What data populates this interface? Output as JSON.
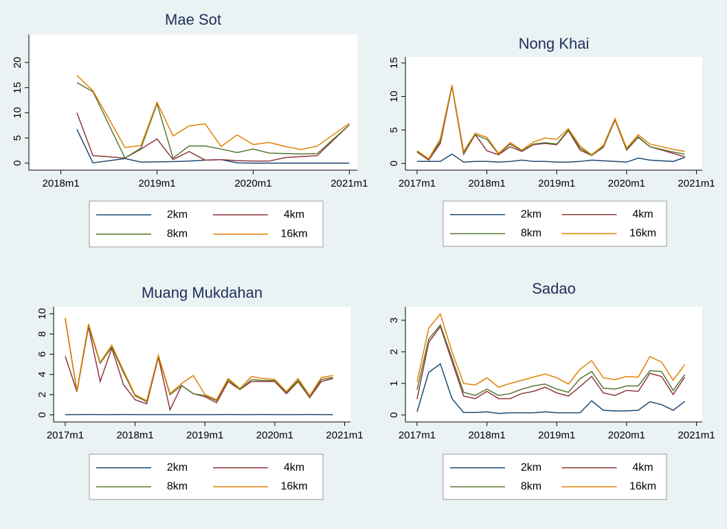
{
  "chart_data": [
    {
      "type": "line",
      "title": "Mae Sot",
      "legend": "bottom",
      "x": [
        "2018m3",
        "2018m5",
        "2018m9",
        "2018m11",
        "2019m1",
        "2019m3",
        "2019m5",
        "2019m7",
        "2019m9",
        "2019m11",
        "2020m1",
        "2020m3",
        "2020m5",
        "2020m7",
        "2020m9",
        "2021m1"
      ],
      "xlim": [
        "2017m9",
        "2021m2"
      ],
      "xticks": [
        "2018m1",
        "2019m1",
        "2020m1",
        "2021m1"
      ],
      "ylim": [
        -1.4,
        25.6
      ],
      "yticks": [
        0,
        5,
        10,
        15,
        20
      ],
      "series": [
        {
          "name": "2km",
          "color": "#1a476f",
          "values": [
            6.7,
            0.05,
            0.9,
            0.2,
            0.25,
            0.3,
            0.4,
            0.6,
            0.7,
            0.05,
            0,
            0,
            0,
            0,
            0,
            0
          ]
        },
        {
          "name": "4km",
          "color": "#90353b",
          "values": [
            10,
            1.5,
            1.0,
            2.8,
            4.8,
            0.7,
            2.3,
            0.6,
            0.7,
            0.5,
            0.4,
            0.4,
            1.1,
            1.3,
            1.5,
            7.6
          ]
        },
        {
          "name": "8km",
          "color": "#55752f",
          "values": [
            16,
            14.2,
            1.0,
            3.0,
            11.8,
            1.0,
            3.4,
            3.4,
            2.8,
            2.1,
            2.8,
            2.0,
            1.9,
            1.8,
            1.9,
            7.6
          ]
        },
        {
          "name": "16km",
          "color": "#e37e00",
          "values": [
            17.4,
            14.4,
            3.1,
            3.5,
            12.1,
            5.4,
            7.4,
            7.8,
            3.3,
            5.6,
            3.7,
            4.1,
            3.3,
            2.7,
            3.4,
            7.9
          ]
        }
      ]
    },
    {
      "type": "line",
      "title": "Nong Khai",
      "legend": "bottom",
      "x": [
        "2017m1",
        "2017m3",
        "2017m5",
        "2017m7",
        "2017m9",
        "2017m11",
        "2018m1",
        "2018m3",
        "2018m5",
        "2018m7",
        "2018m9",
        "2018m11",
        "2019m1",
        "2019m3",
        "2019m5",
        "2019m7",
        "2019m9",
        "2019m11",
        "2020m1",
        "2020m3",
        "2020m5",
        "2020m7",
        "2020m9",
        "2020m11"
      ],
      "xlim": [
        "2016m11",
        "2021m2"
      ],
      "xticks": [
        "2017m1",
        "2018m1",
        "2019m1",
        "2020m1",
        "2021m1"
      ],
      "ylim": [
        -1,
        15.9
      ],
      "yticks": [
        0,
        5,
        10,
        15
      ],
      "series": [
        {
          "name": "2km",
          "color": "#1a476f",
          "values": [
            0.3,
            0.3,
            0.3,
            1.4,
            0.2,
            0.3,
            0.3,
            0.2,
            0.3,
            0.5,
            0.3,
            0.3,
            0.2,
            0.2,
            0.3,
            0.5,
            0.4,
            0.3,
            0.2,
            0.8,
            0.5,
            0.4,
            0.3,
            0.9
          ]
        },
        {
          "name": "4km",
          "color": "#90353b",
          "values": [
            1.7,
            0.5,
            3.0,
            11.5,
            1.4,
            4.3,
            1.9,
            1.3,
            2.5,
            1.8,
            2.8,
            3.0,
            2.8,
            4.9,
            2.0,
            1.2,
            2.4,
            6.5,
            2.0,
            3.9,
            2.5,
            2.0,
            1.5,
            1.0
          ]
        },
        {
          "name": "8km",
          "color": "#55752f",
          "values": [
            1.8,
            0.6,
            3.3,
            11.6,
            1.6,
            4.3,
            3.6,
            1.4,
            2.9,
            1.9,
            2.9,
            3.1,
            2.9,
            5.0,
            2.3,
            1.2,
            2.5,
            6.6,
            2.1,
            4.0,
            2.5,
            2.1,
            1.7,
            1.4
          ]
        },
        {
          "name": "16km",
          "color": "#e37e00",
          "values": [
            1.9,
            0.7,
            3.7,
            11.7,
            1.8,
            4.5,
            3.9,
            1.5,
            3.1,
            2.0,
            3.2,
            3.8,
            3.6,
            5.2,
            2.6,
            1.3,
            2.7,
            6.7,
            2.3,
            4.3,
            2.9,
            2.5,
            2.1,
            1.8
          ]
        }
      ]
    },
    {
      "type": "line",
      "title": "Muang Mukdahan",
      "legend": "bottom",
      "x": [
        "2017m1",
        "2017m3",
        "2017m5",
        "2017m7",
        "2017m9",
        "2017m11",
        "2018m1",
        "2018m3",
        "2018m5",
        "2018m7",
        "2018m9",
        "2018m11",
        "2019m1",
        "2019m3",
        "2019m5",
        "2019m7",
        "2019m9",
        "2019m11",
        "2020m1",
        "2020m3",
        "2020m5",
        "2020m7",
        "2020m9",
        "2020m11"
      ],
      "xlim": [
        "2016m11",
        "2021m2"
      ],
      "xticks": [
        "2017m1",
        "2018m1",
        "2019m1",
        "2020m1",
        "2021m1"
      ],
      "ylim": [
        -0.7,
        10.7
      ],
      "yticks": [
        0,
        2,
        4,
        6,
        8,
        10
      ],
      "series": [
        {
          "name": "2km",
          "color": "#1a476f",
          "values": [
            0.02,
            0.02,
            0.03,
            0.02,
            0.02,
            0.03,
            0.02,
            0.02,
            0.02,
            0.02,
            0.02,
            0.02,
            0.02,
            0.02,
            0.03,
            0.02,
            0.02,
            0.03,
            0.02,
            0.02,
            0.02,
            0.03,
            0.02,
            0.02
          ]
        },
        {
          "name": "4km",
          "color": "#90353b",
          "values": [
            5.8,
            2.3,
            8.7,
            3.3,
            6.6,
            3.0,
            1.5,
            1.1,
            5.7,
            0.5,
            2.9,
            2.1,
            1.8,
            1.2,
            3.3,
            2.5,
            3.3,
            3.3,
            3.3,
            2.1,
            3.3,
            1.7,
            3.3,
            3.6
          ]
        },
        {
          "name": "8km",
          "color": "#55752f",
          "values": [
            9.5,
            2.3,
            8.8,
            5.1,
            6.7,
            4.2,
            1.9,
            1.3,
            5.8,
            2.0,
            2.9,
            2.1,
            1.9,
            1.4,
            3.5,
            2.5,
            3.5,
            3.4,
            3.4,
            2.2,
            3.4,
            1.8,
            3.5,
            3.7
          ]
        },
        {
          "name": "16km",
          "color": "#e37e00",
          "values": [
            9.6,
            2.4,
            9.0,
            5.2,
            6.9,
            4.4,
            2.0,
            1.4,
            5.9,
            2.1,
            3.1,
            3.9,
            2.0,
            1.5,
            3.6,
            2.6,
            3.8,
            3.6,
            3.5,
            2.3,
            3.6,
            1.9,
            3.7,
            3.9
          ]
        }
      ]
    },
    {
      "type": "line",
      "title": "Sadao",
      "legend": "bottom",
      "x": [
        "2017m1",
        "2017m3",
        "2017m5",
        "2017m7",
        "2017m9",
        "2017m11",
        "2018m1",
        "2018m3",
        "2018m5",
        "2018m7",
        "2018m9",
        "2018m11",
        "2019m1",
        "2019m3",
        "2019m5",
        "2019m7",
        "2019m9",
        "2019m11",
        "2020m1",
        "2020m3",
        "2020m5",
        "2020m7",
        "2020m9",
        "2020m11"
      ],
      "xlim": [
        "2016m11",
        "2021m2"
      ],
      "xticks": [
        "2017m1",
        "2018m1",
        "2019m1",
        "2020m1",
        "2021m1"
      ],
      "ylim": [
        -0.22,
        3.43
      ],
      "yticks": [
        0,
        1,
        2,
        3
      ],
      "series": [
        {
          "name": "2km",
          "color": "#1a476f",
          "values": [
            0.1,
            1.35,
            1.62,
            0.52,
            0.08,
            0.08,
            0.1,
            0.05,
            0.07,
            0.07,
            0.07,
            0.1,
            0.07,
            0.07,
            0.07,
            0.45,
            0.15,
            0.13,
            0.13,
            0.15,
            0.42,
            0.33,
            0.15,
            0.43
          ]
        },
        {
          "name": "4km",
          "color": "#90353b",
          "values": [
            0.5,
            2.3,
            2.8,
            1.7,
            0.6,
            0.52,
            0.75,
            0.52,
            0.52,
            0.68,
            0.75,
            0.88,
            0.7,
            0.6,
            0.9,
            1.22,
            0.7,
            0.62,
            0.78,
            0.75,
            1.32,
            1.22,
            0.65,
            1.2
          ]
        },
        {
          "name": "8km",
          "color": "#55752f",
          "values": [
            0.8,
            2.4,
            2.85,
            1.8,
            0.72,
            0.62,
            0.82,
            0.62,
            0.68,
            0.82,
            0.92,
            0.98,
            0.82,
            0.72,
            1.15,
            1.38,
            0.85,
            0.82,
            0.92,
            0.92,
            1.4,
            1.38,
            0.78,
            1.28
          ]
        },
        {
          "name": "16km",
          "color": "#e37e00",
          "values": [
            1.05,
            2.75,
            3.2,
            2.0,
            1.0,
            0.95,
            1.18,
            0.88,
            1.0,
            1.1,
            1.2,
            1.3,
            1.18,
            0.98,
            1.45,
            1.72,
            1.18,
            1.12,
            1.22,
            1.2,
            1.85,
            1.68,
            1.1,
            1.6
          ]
        }
      ]
    }
  ]
}
